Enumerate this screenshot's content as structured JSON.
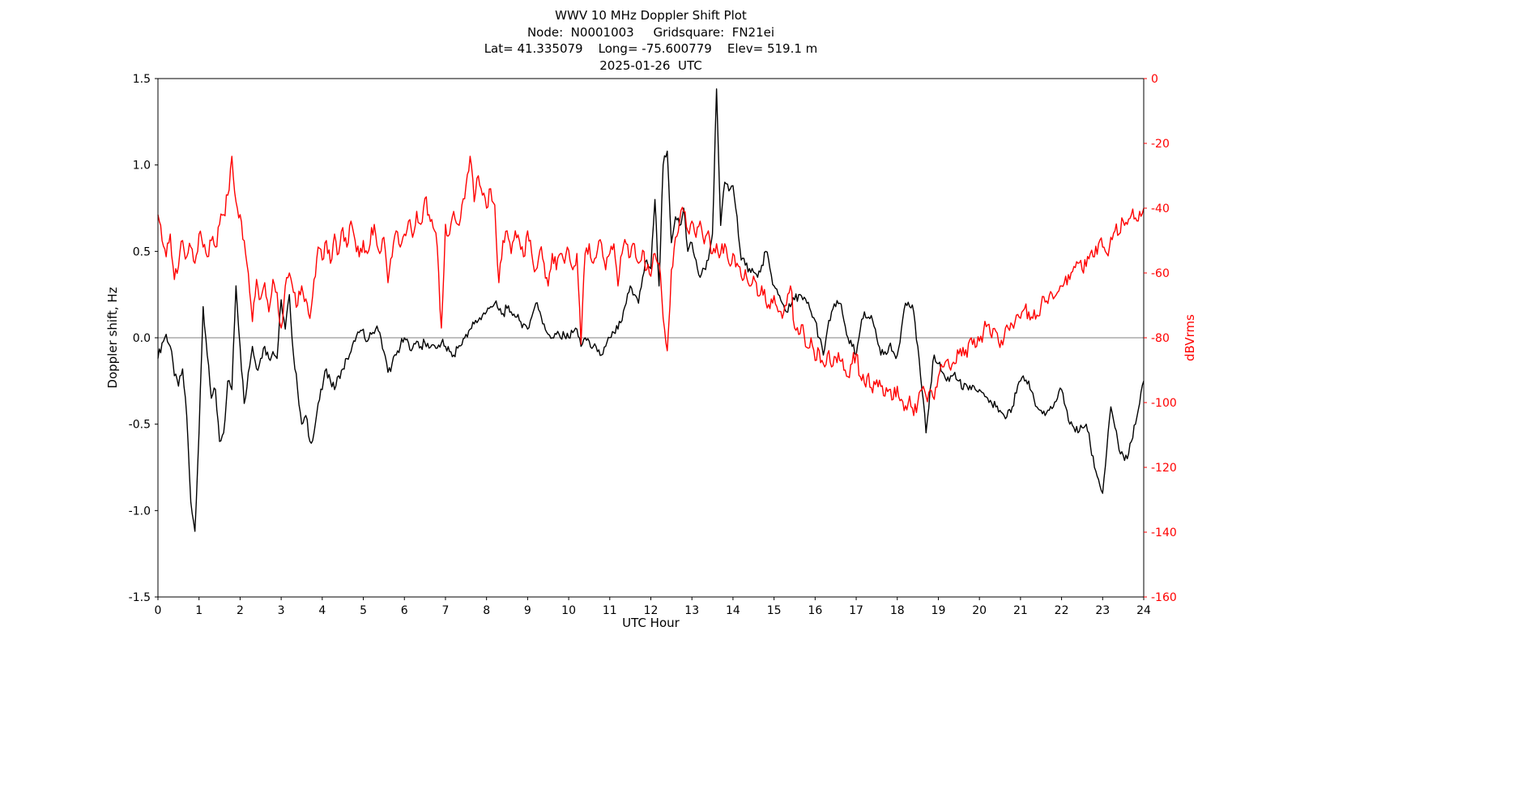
{
  "chart_data": {
    "type": "line",
    "title": "WWV 10 MHz Doppler Shift Plot",
    "subtitle_lines": [
      "Node:  N0001003     Gridsquare:  FN21ei",
      "Lat= 41.335079    Long= -75.600779    Elev= 519.1 m",
      "2025-01-26  UTC"
    ],
    "xlabel": "UTC Hour",
    "ylabel_left": "Doppler shift, Hz",
    "ylabel_right": "dBVrms",
    "x_range": [
      0,
      24
    ],
    "x_ticks": [
      0,
      1,
      2,
      3,
      4,
      5,
      6,
      7,
      8,
      9,
      10,
      11,
      12,
      13,
      14,
      15,
      16,
      17,
      18,
      19,
      20,
      21,
      22,
      23,
      24
    ],
    "y_left_range": [
      -1.5,
      1.5
    ],
    "y_left_tick_labels": [
      "1.5",
      "1.0",
      "0.5",
      "0.0",
      "-0.5",
      "-1.0",
      "-1.5"
    ],
    "y_left_ticks": [
      1.5,
      1.0,
      0.5,
      0.0,
      -0.5,
      -1.0,
      -1.5
    ],
    "y_right_range": [
      -160,
      0
    ],
    "y_right_ticks": [
      0,
      -20,
      -40,
      -60,
      -80,
      -100,
      -120,
      -140,
      -160
    ],
    "grid": false,
    "legend": "none",
    "reference_line": {
      "axis": "left",
      "y": 0.0,
      "color": "#7f7f7f"
    },
    "x_step_hours": 0.1,
    "colors": {
      "left_axis": "#000000",
      "right_axis": "#ff0000",
      "background": "#ffffff",
      "spine": "#000000"
    },
    "series": [
      {
        "name": "Doppler shift",
        "axis": "left",
        "color": "#000000",
        "noise_amplitude": 0.03,
        "values": [
          -0.12,
          -0.03,
          0.02,
          -0.05,
          -0.22,
          -0.28,
          -0.18,
          -0.45,
          -0.95,
          -1.12,
          -0.55,
          0.18,
          -0.1,
          -0.35,
          -0.3,
          -0.6,
          -0.55,
          -0.25,
          -0.3,
          0.3,
          -0.05,
          -0.38,
          -0.2,
          -0.05,
          -0.18,
          -0.12,
          -0.05,
          -0.12,
          -0.08,
          -0.12,
          0.22,
          0.05,
          0.25,
          -0.1,
          -0.3,
          -0.5,
          -0.45,
          -0.6,
          -0.55,
          -0.38,
          -0.3,
          -0.18,
          -0.25,
          -0.3,
          -0.22,
          -0.18,
          -0.12,
          -0.08,
          -0.02,
          0.03,
          0.05,
          -0.02,
          0.02,
          0.05,
          0.03,
          -0.08,
          -0.2,
          -0.15,
          -0.1,
          -0.05,
          0.0,
          -0.03,
          -0.06,
          -0.02,
          -0.05,
          -0.03,
          -0.06,
          -0.04,
          -0.06,
          -0.03,
          -0.05,
          -0.08,
          -0.1,
          -0.06,
          -0.04,
          0.02,
          0.05,
          0.08,
          0.1,
          0.13,
          0.15,
          0.18,
          0.2,
          0.16,
          0.14,
          0.17,
          0.15,
          0.12,
          0.1,
          0.08,
          0.05,
          0.12,
          0.2,
          0.15,
          0.08,
          0.02,
          0.0,
          0.02,
          0.0,
          0.01,
          0.0,
          0.03,
          0.05,
          -0.05,
          0.0,
          -0.02,
          -0.05,
          -0.08,
          -0.1,
          -0.05,
          0.0,
          0.03,
          0.05,
          0.1,
          0.2,
          0.3,
          0.25,
          0.2,
          0.35,
          0.45,
          0.4,
          0.8,
          0.3,
          1.0,
          1.08,
          0.55,
          0.7,
          0.65,
          0.75,
          0.5,
          0.55,
          0.45,
          0.35,
          0.4,
          0.45,
          0.6,
          1.44,
          0.65,
          0.9,
          0.85,
          0.88,
          0.7,
          0.45,
          0.42,
          0.4,
          0.38,
          0.35,
          0.42,
          0.5,
          0.4,
          0.3,
          0.25,
          0.2,
          0.15,
          0.18,
          0.22,
          0.25,
          0.22,
          0.2,
          0.15,
          0.1,
          0.0,
          -0.1,
          0.05,
          0.15,
          0.18,
          0.2,
          0.1,
          0.0,
          -0.05,
          -0.1,
          0.05,
          0.15,
          0.12,
          0.1,
          0.0,
          -0.1,
          -0.08,
          -0.05,
          -0.08,
          -0.1,
          0.05,
          0.2,
          0.18,
          0.15,
          -0.05,
          -0.3,
          -0.55,
          -0.3,
          -0.1,
          -0.15,
          -0.2,
          -0.25,
          -0.22,
          -0.2,
          -0.25,
          -0.3,
          -0.28,
          -0.3,
          -0.3,
          -0.3,
          -0.32,
          -0.35,
          -0.38,
          -0.4,
          -0.42,
          -0.45,
          -0.42,
          -0.4,
          -0.32,
          -0.25,
          -0.25,
          -0.25,
          -0.32,
          -0.4,
          -0.42,
          -0.45,
          -0.42,
          -0.4,
          -0.35,
          -0.3,
          -0.4,
          -0.5,
          -0.52,
          -0.55,
          -0.52,
          -0.5,
          -0.62,
          -0.75,
          -0.82,
          -0.9,
          -0.65,
          -0.4,
          -0.52,
          -0.65,
          -0.68,
          -0.7,
          -0.6,
          -0.5,
          -0.38,
          -0.25
        ]
      },
      {
        "name": "dBVrms",
        "axis": "right",
        "color": "#ff0000",
        "noise_amplitude": 2.5,
        "values": [
          -42,
          -50,
          -55,
          -48,
          -62,
          -58,
          -50,
          -55,
          -52,
          -57,
          -48,
          -52,
          -55,
          -50,
          -52,
          -45,
          -42,
          -36,
          -24,
          -38,
          -42,
          -50,
          -60,
          -75,
          -62,
          -68,
          -63,
          -72,
          -62,
          -66,
          -77,
          -64,
          -60,
          -66,
          -70,
          -64,
          -68,
          -74,
          -62,
          -52,
          -56,
          -50,
          -57,
          -48,
          -54,
          -46,
          -52,
          -44,
          -50,
          -55,
          -50,
          -54,
          -46,
          -48,
          -54,
          -49,
          -63,
          -55,
          -47,
          -52,
          -48,
          -44,
          -49,
          -41,
          -45,
          -37,
          -42,
          -46,
          -52,
          -77,
          -45,
          -48,
          -41,
          -45,
          -39,
          -33,
          -24,
          -38,
          -30,
          -36,
          -40,
          -34,
          -39,
          -63,
          -50,
          -47,
          -54,
          -47,
          -50,
          -55,
          -47,
          -54,
          -59,
          -53,
          -57,
          -64,
          -54,
          -59,
          -54,
          -57,
          -53,
          -59,
          -54,
          -82,
          -54,
          -51,
          -57,
          -53,
          -51,
          -59,
          -54,
          -51,
          -64,
          -54,
          -51,
          -55,
          -51,
          -57,
          -53,
          -59,
          -61,
          -54,
          -57,
          -74,
          -84,
          -59,
          -49,
          -44,
          -41,
          -47,
          -44,
          -49,
          -44,
          -51,
          -47,
          -54,
          -51,
          -54,
          -51,
          -57,
          -54,
          -57,
          -61,
          -59,
          -64,
          -61,
          -67,
          -64,
          -69,
          -71,
          -67,
          -72,
          -74,
          -70,
          -64,
          -77,
          -79,
          -76,
          -83,
          -80,
          -87,
          -84,
          -88,
          -85,
          -89,
          -86,
          -87,
          -90,
          -92,
          -88,
          -85,
          -92,
          -94,
          -91,
          -97,
          -93,
          -95,
          -98,
          -96,
          -99,
          -95,
          -99,
          -101,
          -98,
          -104,
          -100,
          -96,
          -98,
          -96,
          -99,
          -92,
          -89,
          -87,
          -90,
          -88,
          -85,
          -83,
          -86,
          -80,
          -83,
          -81,
          -78,
          -76,
          -80,
          -78,
          -83,
          -80,
          -77,
          -76,
          -73,
          -74,
          -71,
          -72,
          -74,
          -73,
          -70,
          -69,
          -67,
          -68,
          -66,
          -64,
          -61,
          -62,
          -58,
          -57,
          -59,
          -58,
          -54,
          -55,
          -51,
          -52,
          -54,
          -49,
          -47,
          -48,
          -44,
          -45,
          -42,
          -43,
          -41,
          -40
        ]
      }
    ]
  }
}
